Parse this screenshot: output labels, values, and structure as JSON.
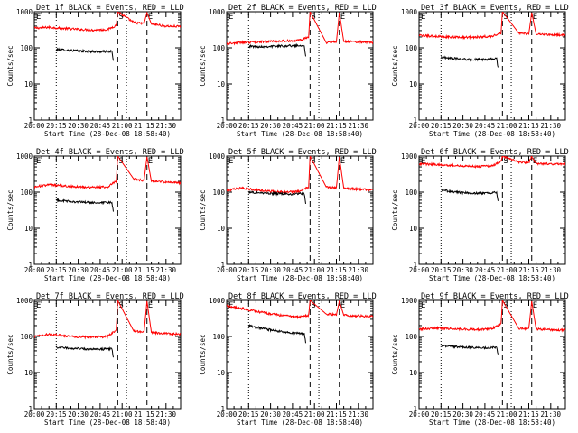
{
  "figure": {
    "rows": 3,
    "cols": 3,
    "xlabel": "Start Time (28-Dec-08 18:58:40)",
    "ylabel": "Counts/sec",
    "x_tick_labels": [
      "20:00",
      "20:15",
      "20:30",
      "20:45",
      "21:00",
      "21:15",
      "21:30"
    ],
    "y_tick_labels": [
      "1",
      "10",
      "100",
      "1000"
    ],
    "marker_labels": {
      "start": "S",
      "end": "E"
    },
    "colors": {
      "events": "#000000",
      "lld": "#ff0000",
      "axes": "#000000",
      "background": "#ffffff"
    }
  },
  "chart_data": [
    {
      "type": "line",
      "title": "Det 1f BLACK = Events, RED = LLD",
      "x_unit": "minutes after 20:00",
      "xlim": [
        0,
        100
      ],
      "y_scale": "log",
      "ylim": [
        1,
        1000
      ],
      "reference_lines": {
        "dotted": [
          15,
          63
        ],
        "dashed": [
          57,
          77
        ]
      },
      "series": [
        {
          "name": "RED = LLD",
          "points": [
            [
              0,
              350
            ],
            [
              10,
              370
            ],
            [
              20,
              345
            ],
            [
              30,
              325
            ],
            [
              40,
              310
            ],
            [
              50,
              320
            ],
            [
              56,
              420
            ],
            [
              57,
              1000
            ],
            [
              68,
              500
            ],
            [
              75,
              470
            ],
            [
              77,
              950
            ],
            [
              80,
              460
            ],
            [
              90,
              400
            ],
            [
              100,
              390
            ]
          ]
        },
        {
          "name": "BLACK = Events",
          "points": [
            [
              15,
              90
            ],
            [
              25,
              85
            ],
            [
              35,
              80
            ],
            [
              45,
              78
            ],
            [
              53,
              80
            ],
            [
              54,
              45
            ]
          ]
        }
      ]
    },
    {
      "type": "line",
      "title": "Det 2f BLACK = Events, RED = LLD",
      "x_unit": "minutes after 20:00",
      "xlim": [
        0,
        100
      ],
      "y_scale": "log",
      "ylim": [
        1,
        1000
      ],
      "reference_lines": {
        "dotted": [
          15,
          63
        ],
        "dashed": [
          57,
          77
        ]
      },
      "series": [
        {
          "name": "RED = LLD",
          "points": [
            [
              0,
              130
            ],
            [
              10,
              140
            ],
            [
              20,
              145
            ],
            [
              30,
              150
            ],
            [
              40,
              155
            ],
            [
              50,
              160
            ],
            [
              56,
              200
            ],
            [
              57,
              1000
            ],
            [
              68,
              140
            ],
            [
              75,
              145
            ],
            [
              77,
              950
            ],
            [
              80,
              150
            ],
            [
              90,
              145
            ],
            [
              100,
              140
            ]
          ]
        },
        {
          "name": "BLACK = Events",
          "points": [
            [
              15,
              110
            ],
            [
              25,
              108
            ],
            [
              35,
              112
            ],
            [
              45,
              115
            ],
            [
              53,
              118
            ],
            [
              54,
              60
            ]
          ]
        }
      ]
    },
    {
      "type": "line",
      "title": "Det 3f BLACK = Events, RED = LLD",
      "x_unit": "minutes after 20:00",
      "xlim": [
        0,
        100
      ],
      "y_scale": "log",
      "ylim": [
        1,
        1000
      ],
      "reference_lines": {
        "dotted": [
          15,
          63
        ],
        "dashed": [
          57,
          77
        ]
      },
      "series": [
        {
          "name": "RED = LLD",
          "points": [
            [
              0,
              220
            ],
            [
              10,
              210
            ],
            [
              20,
              200
            ],
            [
              30,
              195
            ],
            [
              40,
              200
            ],
            [
              50,
              210
            ],
            [
              56,
              260
            ],
            [
              57,
              1000
            ],
            [
              68,
              260
            ],
            [
              75,
              240
            ],
            [
              77,
              950
            ],
            [
              80,
              240
            ],
            [
              90,
              230
            ],
            [
              100,
              225
            ]
          ]
        },
        {
          "name": "BLACK = Events",
          "points": [
            [
              15,
              55
            ],
            [
              25,
              50
            ],
            [
              35,
              47
            ],
            [
              45,
              48
            ],
            [
              53,
              50
            ],
            [
              54,
              30
            ]
          ]
        }
      ]
    },
    {
      "type": "line",
      "title": "Det 4f BLACK = Events, RED = LLD",
      "x_unit": "minutes after 20:00",
      "xlim": [
        0,
        100
      ],
      "y_scale": "log",
      "ylim": [
        1,
        1000
      ],
      "reference_lines": {
        "dotted": [
          15,
          63
        ],
        "dashed": [
          57,
          77
        ]
      },
      "series": [
        {
          "name": "RED = LLD",
          "points": [
            [
              0,
              140
            ],
            [
              10,
              160
            ],
            [
              20,
              150
            ],
            [
              30,
              140
            ],
            [
              40,
              135
            ],
            [
              50,
              140
            ],
            [
              56,
              200
            ],
            [
              57,
              1000
            ],
            [
              68,
              230
            ],
            [
              75,
              210
            ],
            [
              77,
              950
            ],
            [
              80,
              200
            ],
            [
              90,
              190
            ],
            [
              100,
              180
            ]
          ]
        },
        {
          "name": "BLACK = Events",
          "points": [
            [
              15,
              60
            ],
            [
              25,
              55
            ],
            [
              35,
              52
            ],
            [
              45,
              50
            ],
            [
              53,
              52
            ],
            [
              54,
              30
            ]
          ]
        }
      ]
    },
    {
      "type": "line",
      "title": "Det 5f BLACK = Events, RED = LLD",
      "x_unit": "minutes after 20:00",
      "xlim": [
        0,
        100
      ],
      "y_scale": "log",
      "ylim": [
        1,
        1000
      ],
      "reference_lines": {
        "dotted": [
          15,
          63
        ],
        "dashed": [
          57,
          77
        ]
      },
      "series": [
        {
          "name": "RED = LLD",
          "points": [
            [
              0,
              110
            ],
            [
              10,
              130
            ],
            [
              20,
              115
            ],
            [
              30,
              105
            ],
            [
              40,
              100
            ],
            [
              50,
              105
            ],
            [
              56,
              140
            ],
            [
              57,
              1000
            ],
            [
              68,
              140
            ],
            [
              75,
              130
            ],
            [
              77,
              950
            ],
            [
              80,
              130
            ],
            [
              90,
              120
            ],
            [
              100,
              115
            ]
          ]
        },
        {
          "name": "BLACK = Events",
          "points": [
            [
              15,
              100
            ],
            [
              25,
              95
            ],
            [
              35,
              90
            ],
            [
              45,
              88
            ],
            [
              53,
              92
            ],
            [
              54,
              50
            ]
          ]
        }
      ]
    },
    {
      "type": "line",
      "title": "Det 6f BLACK = Events, RED = LLD",
      "x_unit": "minutes after 20:00",
      "xlim": [
        0,
        100
      ],
      "y_scale": "log",
      "ylim": [
        1,
        1000
      ],
      "reference_lines": {
        "dotted": [
          15,
          63
        ],
        "dashed": [
          57,
          77
        ]
      },
      "series": [
        {
          "name": "RED = LLD",
          "points": [
            [
              0,
              600
            ],
            [
              10,
              590
            ],
            [
              20,
              560
            ],
            [
              30,
              530
            ],
            [
              40,
              510
            ],
            [
              50,
              530
            ],
            [
              56,
              700
            ],
            [
              57,
              1000
            ],
            [
              68,
              680
            ],
            [
              75,
              660
            ],
            [
              77,
              950
            ],
            [
              80,
              620
            ],
            [
              90,
              600
            ],
            [
              100,
              590
            ]
          ]
        },
        {
          "name": "BLACK = Events",
          "points": [
            [
              15,
              115
            ],
            [
              25,
              100
            ],
            [
              35,
              95
            ],
            [
              45,
              93
            ],
            [
              53,
              98
            ],
            [
              54,
              60
            ]
          ]
        }
      ]
    },
    {
      "type": "line",
      "title": "Det 7f BLACK = Events, RED = LLD",
      "x_unit": "minutes after 20:00",
      "xlim": [
        0,
        100
      ],
      "y_scale": "log",
      "ylim": [
        1,
        1000
      ],
      "reference_lines": {
        "dotted": [
          15,
          63
        ],
        "dashed": [
          57,
          77
        ]
      },
      "series": [
        {
          "name": "RED = LLD",
          "points": [
            [
              0,
              100
            ],
            [
              10,
              115
            ],
            [
              20,
              105
            ],
            [
              30,
              98
            ],
            [
              40,
              95
            ],
            [
              50,
              100
            ],
            [
              56,
              150
            ],
            [
              57,
              1000
            ],
            [
              68,
              140
            ],
            [
              75,
              130
            ],
            [
              77,
              950
            ],
            [
              80,
              130
            ],
            [
              90,
              120
            ],
            [
              100,
              115
            ]
          ]
        },
        {
          "name": "BLACK = Events",
          "points": [
            [
              15,
              50
            ],
            [
              25,
              47
            ],
            [
              35,
              45
            ],
            [
              45,
              44
            ],
            [
              53,
              46
            ],
            [
              54,
              28
            ]
          ]
        }
      ]
    },
    {
      "type": "line",
      "title": "Det 8f BLACK = Events, RED = LLD",
      "x_unit": "minutes after 20:00",
      "xlim": [
        0,
        100
      ],
      "y_scale": "log",
      "ylim": [
        1,
        1000
      ],
      "reference_lines": {
        "dotted": [
          15,
          63
        ],
        "dashed": [
          57,
          77
        ]
      },
      "series": [
        {
          "name": "RED = LLD",
          "points": [
            [
              0,
              700
            ],
            [
              10,
              600
            ],
            [
              20,
              500
            ],
            [
              30,
              420
            ],
            [
              40,
              370
            ],
            [
              50,
              350
            ],
            [
              56,
              380
            ],
            [
              57,
              1000
            ],
            [
              68,
              420
            ],
            [
              75,
              400
            ],
            [
              77,
              950
            ],
            [
              80,
              390
            ],
            [
              90,
              370
            ],
            [
              100,
              360
            ]
          ]
        },
        {
          "name": "BLACK = Events",
          "points": [
            [
              15,
              200
            ],
            [
              25,
              165
            ],
            [
              35,
              140
            ],
            [
              45,
              125
            ],
            [
              53,
              118
            ],
            [
              54,
              70
            ]
          ]
        }
      ]
    },
    {
      "type": "line",
      "title": "Det 9f BLACK = Events, RED = LLD",
      "x_unit": "minutes after 20:00",
      "xlim": [
        0,
        100
      ],
      "y_scale": "log",
      "ylim": [
        1,
        1000
      ],
      "reference_lines": {
        "dotted": [
          15,
          63
        ],
        "dashed": [
          57,
          77
        ]
      },
      "series": [
        {
          "name": "RED = LLD",
          "points": [
            [
              0,
              160
            ],
            [
              10,
              170
            ],
            [
              20,
              165
            ],
            [
              30,
              160
            ],
            [
              40,
              155
            ],
            [
              50,
              165
            ],
            [
              56,
              220
            ],
            [
              57,
              1000
            ],
            [
              68,
              170
            ],
            [
              75,
              160
            ],
            [
              77,
              950
            ],
            [
              80,
              160
            ],
            [
              90,
              155
            ],
            [
              100,
              150
            ]
          ]
        },
        {
          "name": "BLACK = Events",
          "points": [
            [
              15,
              55
            ],
            [
              25,
              52
            ],
            [
              35,
              50
            ],
            [
              45,
              48
            ],
            [
              53,
              50
            ],
            [
              54,
              30
            ]
          ]
        }
      ]
    }
  ]
}
